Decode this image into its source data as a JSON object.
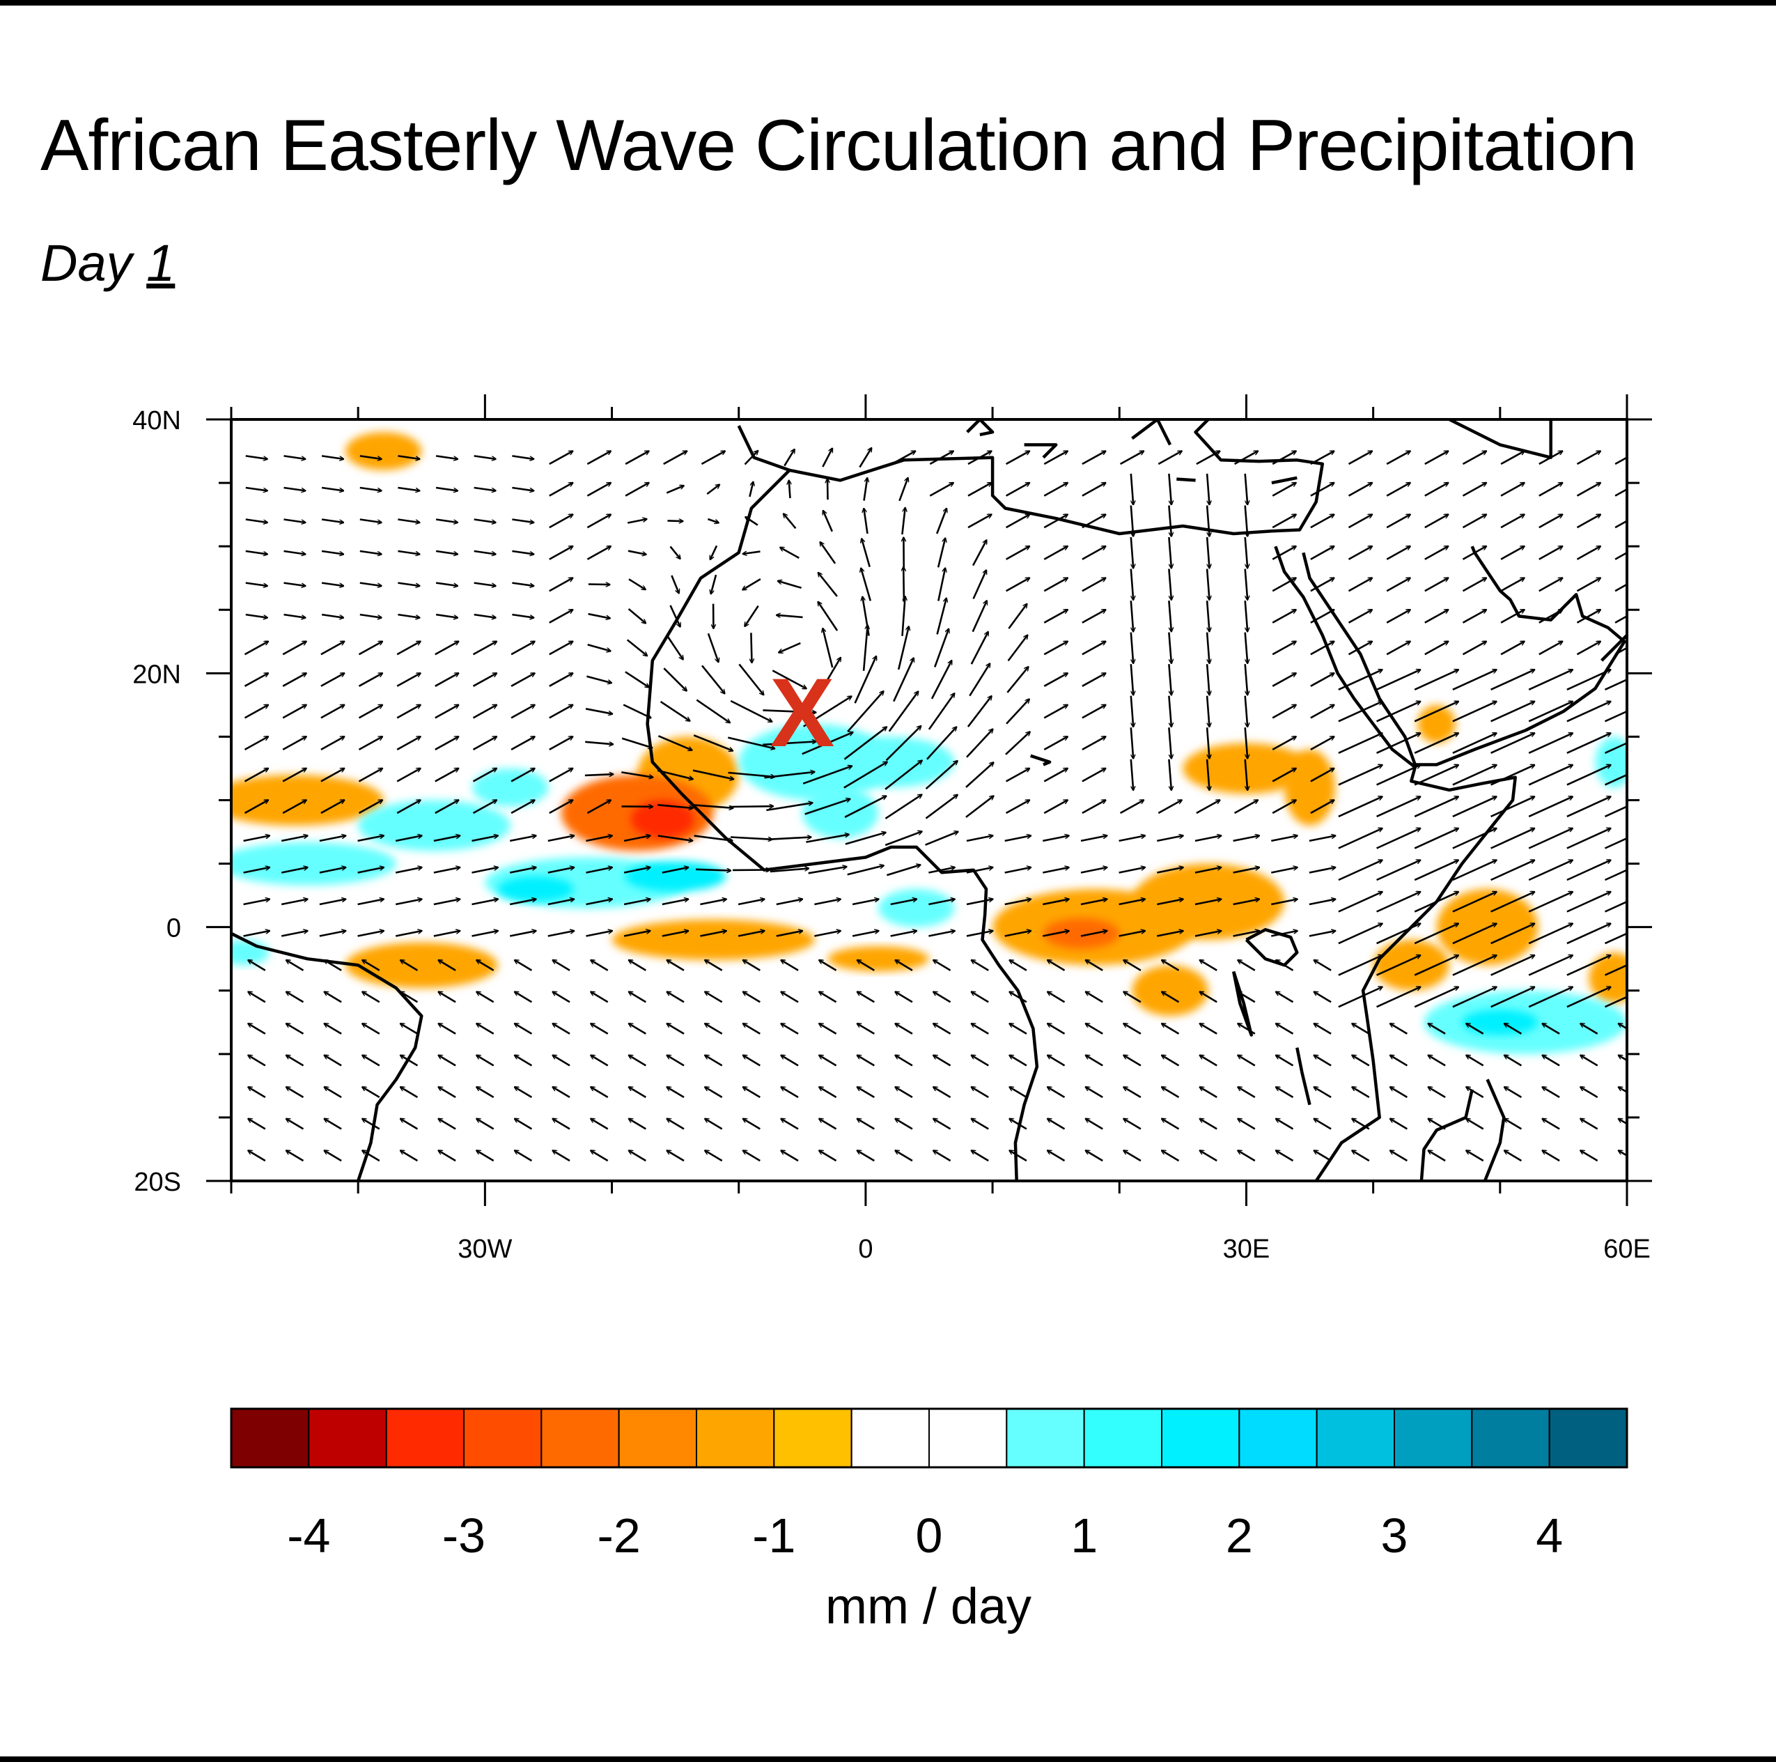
{
  "title": "African Easterly Wave Circulation and Precipitation",
  "subtitle": {
    "prefix": "Day",
    "day": "1"
  },
  "map": {
    "lon_range": [
      -50,
      60
    ],
    "lat_range": [
      -20,
      40
    ],
    "lon_ticks": [
      {
        "value": -30,
        "label": "30W"
      },
      {
        "value": 0,
        "label": "0"
      },
      {
        "value": 30,
        "label": "30E"
      },
      {
        "value": 60,
        "label": "60E"
      }
    ],
    "lat_ticks": [
      {
        "value": 40,
        "label": "40N"
      },
      {
        "value": 20,
        "label": "20N"
      },
      {
        "value": 0,
        "label": "0"
      },
      {
        "value": -20,
        "label": "20S"
      }
    ],
    "marker": {
      "label": "X",
      "lon": -5,
      "lat": 17,
      "color": "#d8321a"
    },
    "precip_anomalies": [
      {
        "lon": -45,
        "lat": 10,
        "rlon": 7,
        "rlat": 2,
        "value": -1
      },
      {
        "lon": -38,
        "lat": 37.5,
        "rlon": 3,
        "rlat": 1.5,
        "value": -1
      },
      {
        "lon": -18,
        "lat": 9,
        "rlon": 6,
        "rlat": 3,
        "value": -2
      },
      {
        "lon": -14,
        "lat": 12,
        "rlon": 4,
        "rlat": 3,
        "value": -1
      },
      {
        "lon": -16,
        "lat": 8.5,
        "rlon": 2.5,
        "rlat": 1.5,
        "value": -3
      },
      {
        "lon": -35,
        "lat": -3,
        "rlon": 6,
        "rlat": 1.8,
        "value": -1
      },
      {
        "lon": -12,
        "lat": -1,
        "rlon": 8,
        "rlat": 1.6,
        "value": -1
      },
      {
        "lon": 1,
        "lat": -2.5,
        "rlon": 4,
        "rlat": 1,
        "value": -1
      },
      {
        "lon": 18,
        "lat": 0,
        "rlon": 8,
        "rlat": 3,
        "value": -1
      },
      {
        "lon": 27,
        "lat": 2,
        "rlon": 6,
        "rlat": 3,
        "value": -1
      },
      {
        "lon": 17,
        "lat": -0.5,
        "rlon": 3,
        "rlat": 1.2,
        "value": -2
      },
      {
        "lon": 24,
        "lat": -5,
        "rlon": 3,
        "rlat": 2,
        "value": -1
      },
      {
        "lon": 30,
        "lat": 12.5,
        "rlon": 5,
        "rlat": 2,
        "value": -1
      },
      {
        "lon": 35,
        "lat": 11,
        "rlon": 2,
        "rlat": 3,
        "value": -1
      },
      {
        "lon": 45,
        "lat": 16,
        "rlon": 1.5,
        "rlat": 1.5,
        "value": -1
      },
      {
        "lon": 49,
        "lat": 0,
        "rlon": 4,
        "rlat": 3,
        "value": -1
      },
      {
        "lon": 43,
        "lat": -3,
        "rlon": 3,
        "rlat": 2,
        "value": -1
      },
      {
        "lon": 59,
        "lat": -4,
        "rlon": 2,
        "rlat": 2,
        "value": -1
      },
      {
        "lon": -44,
        "lat": 5,
        "rlon": 7,
        "rlat": 1.7,
        "value": 1
      },
      {
        "lon": -34,
        "lat": 8,
        "rlon": 6,
        "rlat": 2,
        "value": 1
      },
      {
        "lon": -28,
        "lat": 11,
        "rlon": 3,
        "rlat": 1.5,
        "value": 1
      },
      {
        "lon": -22,
        "lat": 3.5,
        "rlon": 8,
        "rlat": 2,
        "value": 1
      },
      {
        "lon": -15,
        "lat": 4,
        "rlon": 4,
        "rlat": 1.2,
        "value": 2
      },
      {
        "lon": -26,
        "lat": 3,
        "rlon": 3,
        "rlat": 1,
        "value": 2
      },
      {
        "lon": -4,
        "lat": 13,
        "rlon": 6,
        "rlat": 3,
        "value": 1
      },
      {
        "lon": 2,
        "lat": 13,
        "rlon": 5,
        "rlat": 2,
        "value": 1
      },
      {
        "lon": -2,
        "lat": 9,
        "rlon": 3,
        "rlat": 2,
        "value": 1
      },
      {
        "lon": 4,
        "lat": 1.5,
        "rlon": 3,
        "rlat": 1.5,
        "value": 1
      },
      {
        "lon": -49,
        "lat": -2,
        "rlon": 2,
        "rlat": 1,
        "value": 1
      },
      {
        "lon": 52,
        "lat": -7.5,
        "rlon": 8,
        "rlat": 2.5,
        "value": 1
      },
      {
        "lon": 50,
        "lat": -7.5,
        "rlon": 3,
        "rlat": 1,
        "value": 2
      },
      {
        "lon": 59,
        "lat": 13,
        "rlon": 1.5,
        "rlat": 2,
        "value": 1
      }
    ]
  },
  "colorbar": {
    "colors": [
      "#7f0000",
      "#bf0000",
      "#ff2a00",
      "#ff4d00",
      "#ff6a00",
      "#ff8800",
      "#ffa500",
      "#ffc000",
      "#ffffff",
      "#ffffff",
      "#66ffff",
      "#33ffff",
      "#00f0ff",
      "#00dcff",
      "#00c0e0",
      "#009fc0",
      "#007ea0",
      "#006080"
    ],
    "labels": [
      "-4",
      "-3",
      "-2",
      "-1",
      "0",
      "1",
      "2",
      "3",
      "4"
    ],
    "units": "mm / day"
  }
}
